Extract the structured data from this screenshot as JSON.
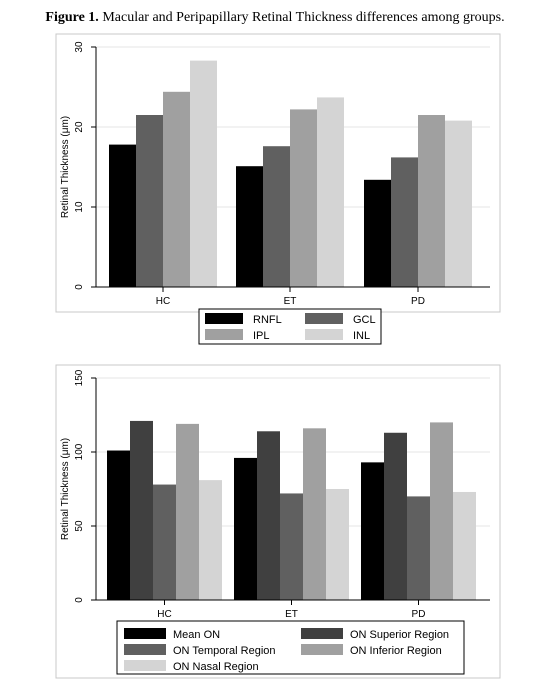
{
  "figure": {
    "label": "Figure 1.",
    "title": "Macular and Peripapillary Retinal Thickness differences among groups."
  },
  "chart_data": [
    {
      "type": "bar",
      "ylabel": "Retinal Thickness (μm)",
      "xlabel": "",
      "categories": [
        "HC",
        "ET",
        "PD"
      ],
      "ylim": [
        0,
        30
      ],
      "yticks": [
        0,
        10,
        20,
        30
      ],
      "grid": true,
      "legend_position": "bottom",
      "series": [
        {
          "name": "RNFL",
          "color": "#000000",
          "values": [
            17.8,
            15.1,
            13.4
          ]
        },
        {
          "name": "GCL",
          "color": "#606060",
          "values": [
            21.5,
            17.6,
            16.2
          ]
        },
        {
          "name": "IPL",
          "color": "#a0a0a0",
          "values": [
            24.4,
            22.2,
            21.5
          ]
        },
        {
          "name": "INL",
          "color": "#d4d4d4",
          "values": [
            28.3,
            23.7,
            20.8
          ]
        }
      ]
    },
    {
      "type": "bar",
      "ylabel": "Retinal Thickness (μm)",
      "xlabel": "",
      "categories": [
        "HC",
        "ET",
        "PD"
      ],
      "ylim": [
        0,
        150
      ],
      "yticks": [
        0,
        50,
        100,
        150
      ],
      "grid": true,
      "legend_position": "bottom",
      "series": [
        {
          "name": "Mean ON",
          "color": "#000000",
          "values": [
            101,
            96,
            93
          ]
        },
        {
          "name": "ON Superior Region",
          "color": "#404040",
          "values": [
            121,
            114,
            113
          ]
        },
        {
          "name": "ON Temporal Region",
          "color": "#606060",
          "values": [
            78,
            72,
            70
          ]
        },
        {
          "name": "ON Inferior Region",
          "color": "#a0a0a0",
          "values": [
            119,
            116,
            120
          ]
        },
        {
          "name": "ON Nasal Region",
          "color": "#d4d4d4",
          "values": [
            81,
            75,
            73
          ]
        }
      ]
    }
  ]
}
